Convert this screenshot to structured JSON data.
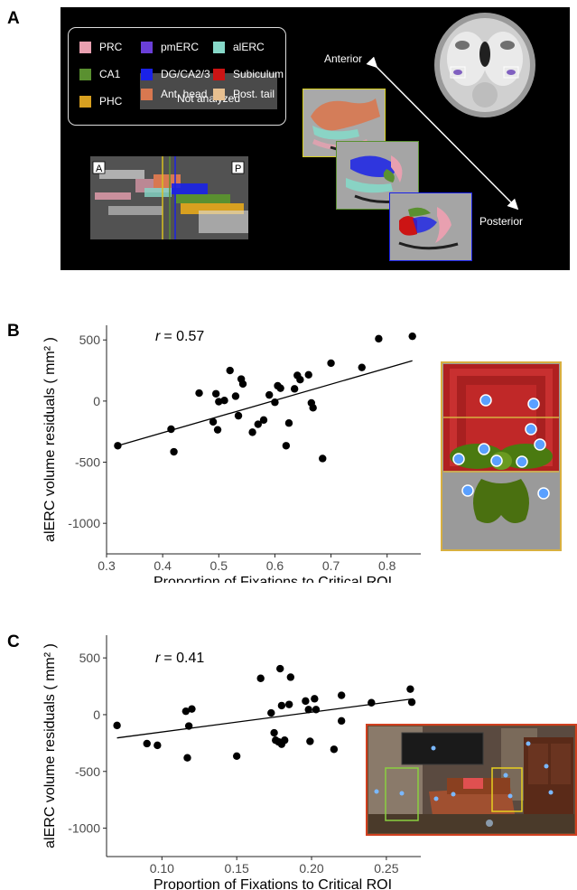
{
  "panelA": {
    "letter": "A",
    "legend": [
      {
        "label": "PRC",
        "color": "#e9a0b0"
      },
      {
        "label": "pmERC",
        "color": "#6a3fd8"
      },
      {
        "label": "alERC",
        "color": "#86d8c8"
      },
      {
        "label": "CA1",
        "color": "#5a9030"
      },
      {
        "label": "DG/CA2/3",
        "color": "#1a22e8"
      },
      {
        "label": "Subiculum",
        "color": "#cc1414"
      },
      {
        "label": "PHC",
        "color": "#d8a020"
      },
      {
        "label": "Ant. head",
        "color": "#d87850"
      },
      {
        "label": "Post. tail",
        "color": "#e8c090"
      }
    ],
    "not_analyzed": "Not analyzed",
    "anterior": "Anterior",
    "posterior": "Posterior",
    "sag_left": "A",
    "sag_right": "P"
  },
  "panelB": {
    "letter": "B",
    "r_text": "= 0.57",
    "r_symbol": "r"
  },
  "panelC": {
    "letter": "C",
    "r_text": "= 0.41",
    "r_symbol": "r"
  },
  "chart_data": [
    {
      "type": "scatter",
      "panel": "B",
      "xlabel": "Proportion of Fixations to Critical ROI",
      "ylabel": "alERC volume residuals ( mm² )",
      "xlim": [
        0.3,
        0.86
      ],
      "ylim": [
        -1250,
        620
      ],
      "xticks": [
        0.3,
        0.4,
        0.5,
        0.6,
        0.7,
        0.8
      ],
      "xtick_labels": [
        "0.3",
        "0.4",
        "0.5",
        "0.6",
        "0.7",
        "0.8"
      ],
      "yticks": [
        500,
        0,
        -500,
        -1000
      ],
      "ytick_labels": [
        "500",
        "0",
        "-500",
        "-1000"
      ],
      "annotation": "r = 0.57",
      "fit_line": {
        "x": [
          0.32,
          0.845
        ],
        "y": [
          -365,
          330
        ]
      },
      "points": [
        [
          0.32,
          -365
        ],
        [
          0.415,
          -230
        ],
        [
          0.42,
          -415
        ],
        [
          0.465,
          65
        ],
        [
          0.49,
          -170
        ],
        [
          0.495,
          60
        ],
        [
          0.498,
          -235
        ],
        [
          0.5,
          -5
        ],
        [
          0.51,
          5
        ],
        [
          0.52,
          250
        ],
        [
          0.53,
          40
        ],
        [
          0.535,
          -120
        ],
        [
          0.54,
          180
        ],
        [
          0.543,
          140
        ],
        [
          0.56,
          -255
        ],
        [
          0.57,
          -190
        ],
        [
          0.58,
          -155
        ],
        [
          0.59,
          50
        ],
        [
          0.6,
          -10
        ],
        [
          0.605,
          125
        ],
        [
          0.61,
          105
        ],
        [
          0.62,
          -365
        ],
        [
          0.625,
          -180
        ],
        [
          0.635,
          100
        ],
        [
          0.64,
          210
        ],
        [
          0.645,
          175
        ],
        [
          0.66,
          215
        ],
        [
          0.665,
          -15
        ],
        [
          0.668,
          -55
        ],
        [
          0.685,
          -470
        ],
        [
          0.7,
          310
        ],
        [
          0.755,
          275
        ],
        [
          0.785,
          510
        ],
        [
          0.845,
          530
        ]
      ]
    },
    {
      "type": "scatter",
      "panel": "C",
      "xlabel": "Proportion of Fixations to Critical ROI",
      "ylabel": "alERC volume residuals ( mm² )",
      "xlim": [
        0.063,
        0.273
      ],
      "ylim": [
        -1250,
        700
      ],
      "xticks": [
        0.1,
        0.15,
        0.2,
        0.25
      ],
      "xtick_labels": [
        "0.10",
        "0.15",
        "0.20",
        "0.25"
      ],
      "yticks": [
        500,
        0,
        -500,
        -1000
      ],
      "ytick_labels": [
        "500",
        "0",
        "-500",
        "-1000"
      ],
      "annotation": "r = 0.41",
      "fit_line": {
        "x": [
          0.07,
          0.268
        ],
        "y": [
          -205,
          140
        ]
      },
      "points": [
        [
          0.07,
          -95
        ],
        [
          0.09,
          -255
        ],
        [
          0.097,
          -270
        ],
        [
          0.116,
          30
        ],
        [
          0.117,
          -380
        ],
        [
          0.118,
          -100
        ],
        [
          0.12,
          50
        ],
        [
          0.15,
          -365
        ],
        [
          0.166,
          320
        ],
        [
          0.173,
          15
        ],
        [
          0.175,
          -160
        ],
        [
          0.176,
          -225
        ],
        [
          0.178,
          -240
        ],
        [
          0.179,
          405
        ],
        [
          0.18,
          80
        ],
        [
          0.18,
          -260
        ],
        [
          0.182,
          -225
        ],
        [
          0.185,
          90
        ],
        [
          0.186,
          330
        ],
        [
          0.196,
          120
        ],
        [
          0.198,
          45
        ],
        [
          0.199,
          -235
        ],
        [
          0.202,
          140
        ],
        [
          0.203,
          45
        ],
        [
          0.215,
          -305
        ],
        [
          0.22,
          -55
        ],
        [
          0.22,
          170
        ],
        [
          0.24,
          105
        ],
        [
          0.266,
          225
        ],
        [
          0.267,
          110
        ]
      ]
    }
  ]
}
